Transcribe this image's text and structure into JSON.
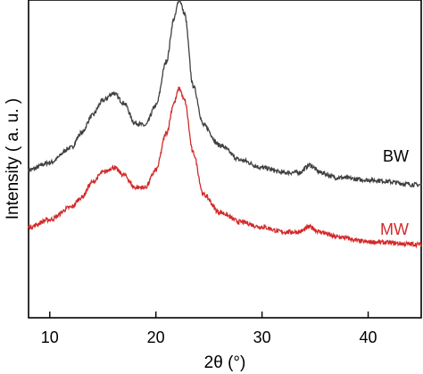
{
  "chart_data": {
    "type": "line",
    "xlabel": "2θ (°)",
    "ylabel": "Intensity ( a. u. )",
    "xlim": [
      8,
      45
    ],
    "x_ticks": [
      "10",
      "20",
      "30",
      "40"
    ],
    "y_ticks_shown": false,
    "grid": false,
    "legend": "inline labels at right",
    "series": [
      {
        "name": "BW",
        "color": "#404040",
        "points": [
          [
            8,
            0.56
          ],
          [
            10,
            0.59
          ],
          [
            12,
            0.65
          ],
          [
            13,
            0.71
          ],
          [
            14,
            0.78
          ],
          [
            15,
            0.84
          ],
          [
            16,
            0.87
          ],
          [
            17,
            0.83
          ],
          [
            18,
            0.75
          ],
          [
            19,
            0.74
          ],
          [
            20,
            0.82
          ],
          [
            21,
            1.0
          ],
          [
            21.7,
            1.17
          ],
          [
            22.2,
            1.25
          ],
          [
            22.7,
            1.19
          ],
          [
            23.5,
            0.9
          ],
          [
            24.5,
            0.74
          ],
          [
            26,
            0.66
          ],
          [
            28,
            0.6
          ],
          [
            30,
            0.57
          ],
          [
            32,
            0.55
          ],
          [
            33.5,
            0.55
          ],
          [
            34.5,
            0.58
          ],
          [
            35.5,
            0.55
          ],
          [
            37,
            0.53
          ],
          [
            40,
            0.52
          ],
          [
            45,
            0.5
          ]
        ]
      },
      {
        "name": "MW",
        "color": "#d42a2a",
        "points": [
          [
            8,
            0.33
          ],
          [
            10,
            0.36
          ],
          [
            12,
            0.41
          ],
          [
            13,
            0.45
          ],
          [
            14,
            0.51
          ],
          [
            15,
            0.55
          ],
          [
            16,
            0.57
          ],
          [
            17,
            0.54
          ],
          [
            18,
            0.49
          ],
          [
            19,
            0.49
          ],
          [
            20,
            0.56
          ],
          [
            21,
            0.71
          ],
          [
            21.7,
            0.83
          ],
          [
            22.2,
            0.89
          ],
          [
            22.7,
            0.84
          ],
          [
            23.5,
            0.63
          ],
          [
            24.5,
            0.46
          ],
          [
            26,
            0.39
          ],
          [
            28,
            0.35
          ],
          [
            30,
            0.33
          ],
          [
            32,
            0.31
          ],
          [
            33.5,
            0.31
          ],
          [
            34.5,
            0.33
          ],
          [
            35.5,
            0.31
          ],
          [
            37,
            0.29
          ],
          [
            40,
            0.27
          ],
          [
            45,
            0.26
          ]
        ]
      }
    ]
  }
}
